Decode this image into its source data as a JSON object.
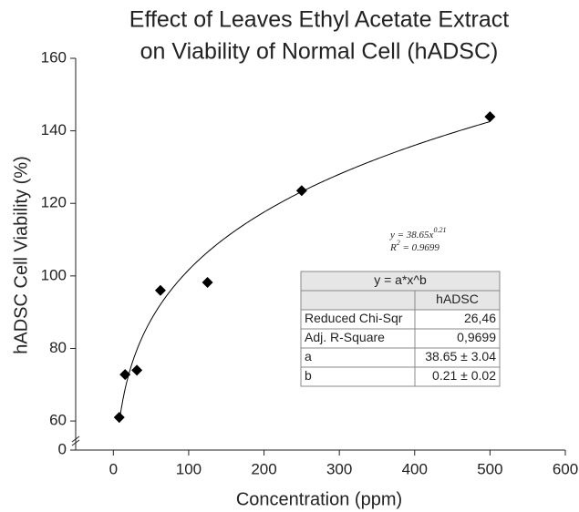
{
  "chart_data": {
    "type": "scatter",
    "title": [
      "Effect of Leaves Ethyl Acetate Extract",
      "on Viability of Normal Cell (hADSC)"
    ],
    "x_label": "Concentration (ppm)",
    "y_label": "hADSC Cell Viability (%)",
    "x": [
      7.8,
      15.6,
      31.25,
      62.5,
      125,
      250,
      500
    ],
    "series": [
      {
        "name": "hADSC",
        "color": "#000000",
        "values": [
          61,
          72.8,
          74,
          96,
          98.2,
          123.5,
          143.9
        ]
      }
    ],
    "fit": {
      "a": 38.65,
      "b": 0.21,
      "color": "#000000"
    },
    "equation": {
      "base": "y = 38.65x",
      "exponent": "0.21"
    },
    "r_squared": {
      "base": "R",
      "exponent": "2",
      "rest": " = 0.9699"
    },
    "table": {
      "title": "y = a*x^b",
      "header": "hADSC",
      "rows": [
        [
          "Reduced Chi-Sqr",
          "26,46"
        ],
        [
          "Adj. R-Square",
          "0,9699"
        ],
        [
          "a",
          "38.65 ± 3.04"
        ],
        [
          "b",
          "0.21 ± 0.02"
        ]
      ]
    },
    "xlim": [
      -50,
      600
    ],
    "xticks": [
      0,
      100,
      200,
      300,
      400,
      500,
      600
    ],
    "ylim": [
      0,
      160
    ],
    "yticks": [
      0,
      60,
      80,
      100,
      120,
      140,
      160
    ],
    "axis_break": [
      5,
      55
    ]
  }
}
